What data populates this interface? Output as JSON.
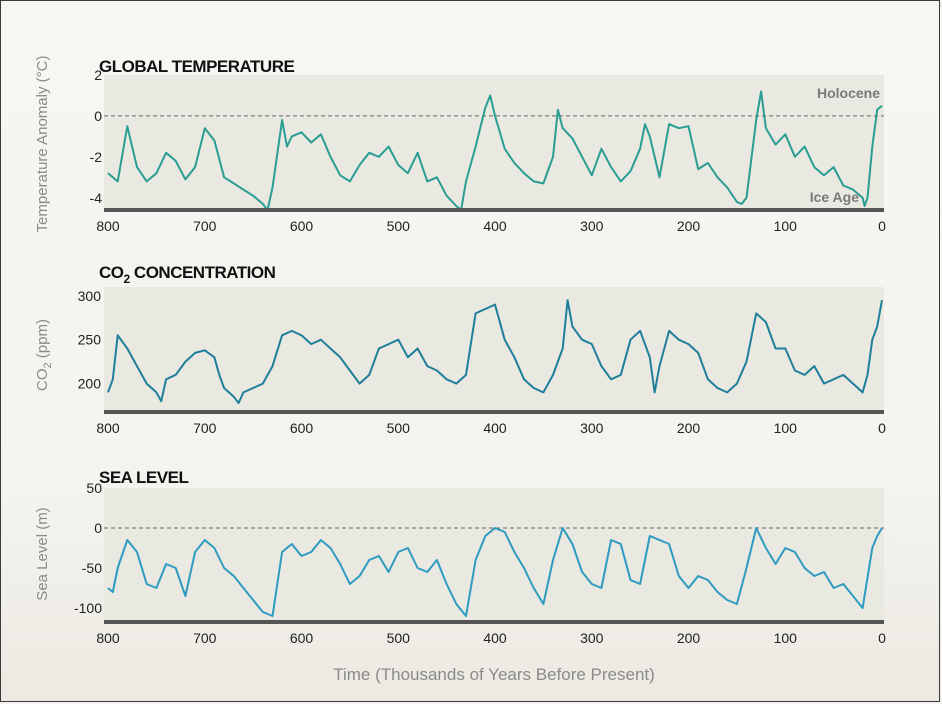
{
  "x_axis_label": "Time (Thousands of Years Before Present)",
  "colors": {
    "temperature": "#2a9e93",
    "co2": "#1f7f9a",
    "sea_level": "#2e9bc0",
    "plot_bg": "#e9e8e1",
    "axis": "#555555"
  },
  "chart_data": [
    {
      "type": "line",
      "title": "GLOBAL TEMPERATURE",
      "ylabel": "Temperature Anomaly (°C)",
      "x_ticks": [
        "800",
        "700",
        "600",
        "500",
        "400",
        "300",
        "200",
        "100",
        "0"
      ],
      "y_ticks": [
        "2",
        "0",
        "-2",
        "-4"
      ],
      "xlim": [
        800,
        0
      ],
      "ylim": [
        -4.5,
        2
      ],
      "reference_line": 0,
      "annotations": [
        "Holocene",
        "Ice Age"
      ],
      "series": [
        {
          "x": [
            800,
            790,
            780,
            770,
            760,
            750,
            740,
            730,
            720,
            710,
            700,
            690,
            680,
            670,
            660,
            650,
            640,
            635,
            630,
            620,
            615,
            610,
            600,
            590,
            580,
            570,
            560,
            550,
            540,
            530,
            520,
            510,
            500,
            490,
            480,
            470,
            460,
            450,
            440,
            435,
            430,
            420,
            410,
            405,
            400,
            390,
            380,
            370,
            360,
            350,
            340,
            335,
            330,
            320,
            310,
            300,
            290,
            280,
            270,
            260,
            250,
            245,
            240,
            230,
            220,
            215,
            210,
            200,
            190,
            180,
            170,
            160,
            150,
            145,
            140,
            130,
            125,
            120,
            110,
            100,
            90,
            80,
            70,
            60,
            50,
            40,
            30,
            20,
            18,
            15,
            10,
            5,
            0
          ],
          "y": [
            -2.8,
            -3.2,
            -0.5,
            -2.5,
            -3.2,
            -2.8,
            -1.8,
            -2.2,
            -3.1,
            -2.5,
            -0.6,
            -1.2,
            -3.0,
            -3.3,
            -3.6,
            -3.9,
            -4.3,
            -4.6,
            -3.5,
            -0.2,
            -1.5,
            -1.0,
            -0.8,
            -1.3,
            -0.9,
            -2.0,
            -2.9,
            -3.2,
            -2.4,
            -1.8,
            -2.0,
            -1.5,
            -2.4,
            -2.8,
            -1.8,
            -3.2,
            -3.0,
            -3.9,
            -4.4,
            -4.6,
            -3.2,
            -1.5,
            0.4,
            1.0,
            0.0,
            -1.6,
            -2.3,
            -2.8,
            -3.2,
            -3.3,
            -2.0,
            0.3,
            -0.6,
            -1.1,
            -2.0,
            -2.9,
            -1.6,
            -2.5,
            -3.2,
            -2.7,
            -1.6,
            -0.4,
            -1.0,
            -3.0,
            -0.4,
            -0.5,
            -0.6,
            -0.5,
            -2.6,
            -2.3,
            -3.0,
            -3.5,
            -4.2,
            -4.3,
            -4.0,
            -0.2,
            1.2,
            -0.6,
            -1.4,
            -0.9,
            -2.0,
            -1.5,
            -2.5,
            -2.9,
            -2.5,
            -3.4,
            -3.6,
            -4.0,
            -4.4,
            -4.0,
            -1.5,
            0.3,
            0.5
          ]
        }
      ]
    },
    {
      "type": "line",
      "title": "CO",
      "title_subscript": "2",
      "title_suffix": " CONCENTRATION",
      "ylabel": "CO",
      "ylabel_subscript": "2",
      "ylabel_suffix": " (ppm)",
      "x_ticks": [
        "800",
        "700",
        "600",
        "500",
        "400",
        "300",
        "200",
        "100",
        "0"
      ],
      "y_ticks": [
        "300",
        "250",
        "200"
      ],
      "xlim": [
        800,
        0
      ],
      "ylim": [
        170,
        310
      ],
      "series": [
        {
          "x": [
            800,
            795,
            790,
            780,
            770,
            760,
            750,
            745,
            740,
            730,
            720,
            710,
            700,
            690,
            685,
            680,
            670,
            665,
            660,
            650,
            640,
            630,
            620,
            610,
            600,
            590,
            580,
            570,
            560,
            550,
            540,
            530,
            520,
            510,
            500,
            490,
            480,
            470,
            460,
            450,
            440,
            430,
            420,
            410,
            400,
            390,
            380,
            370,
            360,
            350,
            340,
            330,
            325,
            320,
            310,
            300,
            290,
            280,
            270,
            260,
            250,
            240,
            235,
            230,
            220,
            210,
            200,
            190,
            180,
            170,
            160,
            150,
            140,
            130,
            125,
            120,
            110,
            100,
            90,
            80,
            70,
            60,
            50,
            40,
            30,
            20,
            15,
            10,
            5,
            0
          ],
          "y": [
            190,
            205,
            255,
            240,
            220,
            200,
            190,
            180,
            205,
            210,
            225,
            235,
            238,
            230,
            210,
            195,
            185,
            178,
            190,
            195,
            200,
            220,
            255,
            260,
            255,
            245,
            250,
            240,
            230,
            215,
            200,
            210,
            240,
            245,
            250,
            230,
            240,
            220,
            215,
            205,
            200,
            210,
            280,
            285,
            290,
            250,
            230,
            205,
            195,
            190,
            210,
            240,
            295,
            265,
            250,
            245,
            220,
            205,
            210,
            250,
            260,
            230,
            190,
            220,
            260,
            250,
            245,
            235,
            205,
            195,
            190,
            200,
            225,
            280,
            275,
            270,
            240,
            240,
            215,
            210,
            220,
            200,
            205,
            210,
            200,
            190,
            210,
            250,
            265,
            295
          ]
        }
      ]
    },
    {
      "type": "line",
      "title": "SEA LEVEL",
      "ylabel": "Sea Level (m)",
      "x_ticks": [
        "800",
        "700",
        "600",
        "500",
        "400",
        "300",
        "200",
        "100",
        "0"
      ],
      "y_ticks": [
        "50",
        "0",
        "-50",
        "-100"
      ],
      "xlim": [
        800,
        0
      ],
      "ylim": [
        -115,
        50
      ],
      "reference_line": 0,
      "series": [
        {
          "x": [
            800,
            795,
            790,
            780,
            770,
            760,
            750,
            740,
            730,
            720,
            710,
            700,
            690,
            680,
            670,
            660,
            650,
            640,
            630,
            620,
            610,
            600,
            590,
            580,
            570,
            560,
            550,
            540,
            530,
            520,
            510,
            500,
            490,
            480,
            470,
            460,
            450,
            440,
            430,
            420,
            410,
            400,
            390,
            380,
            370,
            360,
            350,
            340,
            330,
            320,
            310,
            300,
            290,
            280,
            270,
            260,
            250,
            240,
            230,
            220,
            210,
            200,
            190,
            180,
            170,
            160,
            150,
            140,
            130,
            120,
            110,
            100,
            90,
            80,
            70,
            60,
            50,
            40,
            30,
            20,
            10,
            5,
            0
          ],
          "y": [
            -75,
            -80,
            -50,
            -15,
            -30,
            -70,
            -75,
            -45,
            -50,
            -85,
            -30,
            -15,
            -25,
            -50,
            -60,
            -75,
            -90,
            -105,
            -110,
            -30,
            -20,
            -35,
            -30,
            -15,
            -25,
            -45,
            -70,
            -60,
            -40,
            -35,
            -55,
            -30,
            -25,
            -50,
            -55,
            -40,
            -70,
            -95,
            -110,
            -40,
            -10,
            0,
            -5,
            -30,
            -50,
            -75,
            -95,
            -40,
            0,
            -20,
            -55,
            -70,
            -75,
            -15,
            -20,
            -65,
            -70,
            -10,
            -15,
            -20,
            -60,
            -75,
            -60,
            -65,
            -80,
            -90,
            -95,
            -50,
            0,
            -25,
            -45,
            -25,
            -30,
            -50,
            -60,
            -55,
            -75,
            -70,
            -85,
            -100,
            -25,
            -10,
            0
          ]
        }
      ]
    }
  ]
}
